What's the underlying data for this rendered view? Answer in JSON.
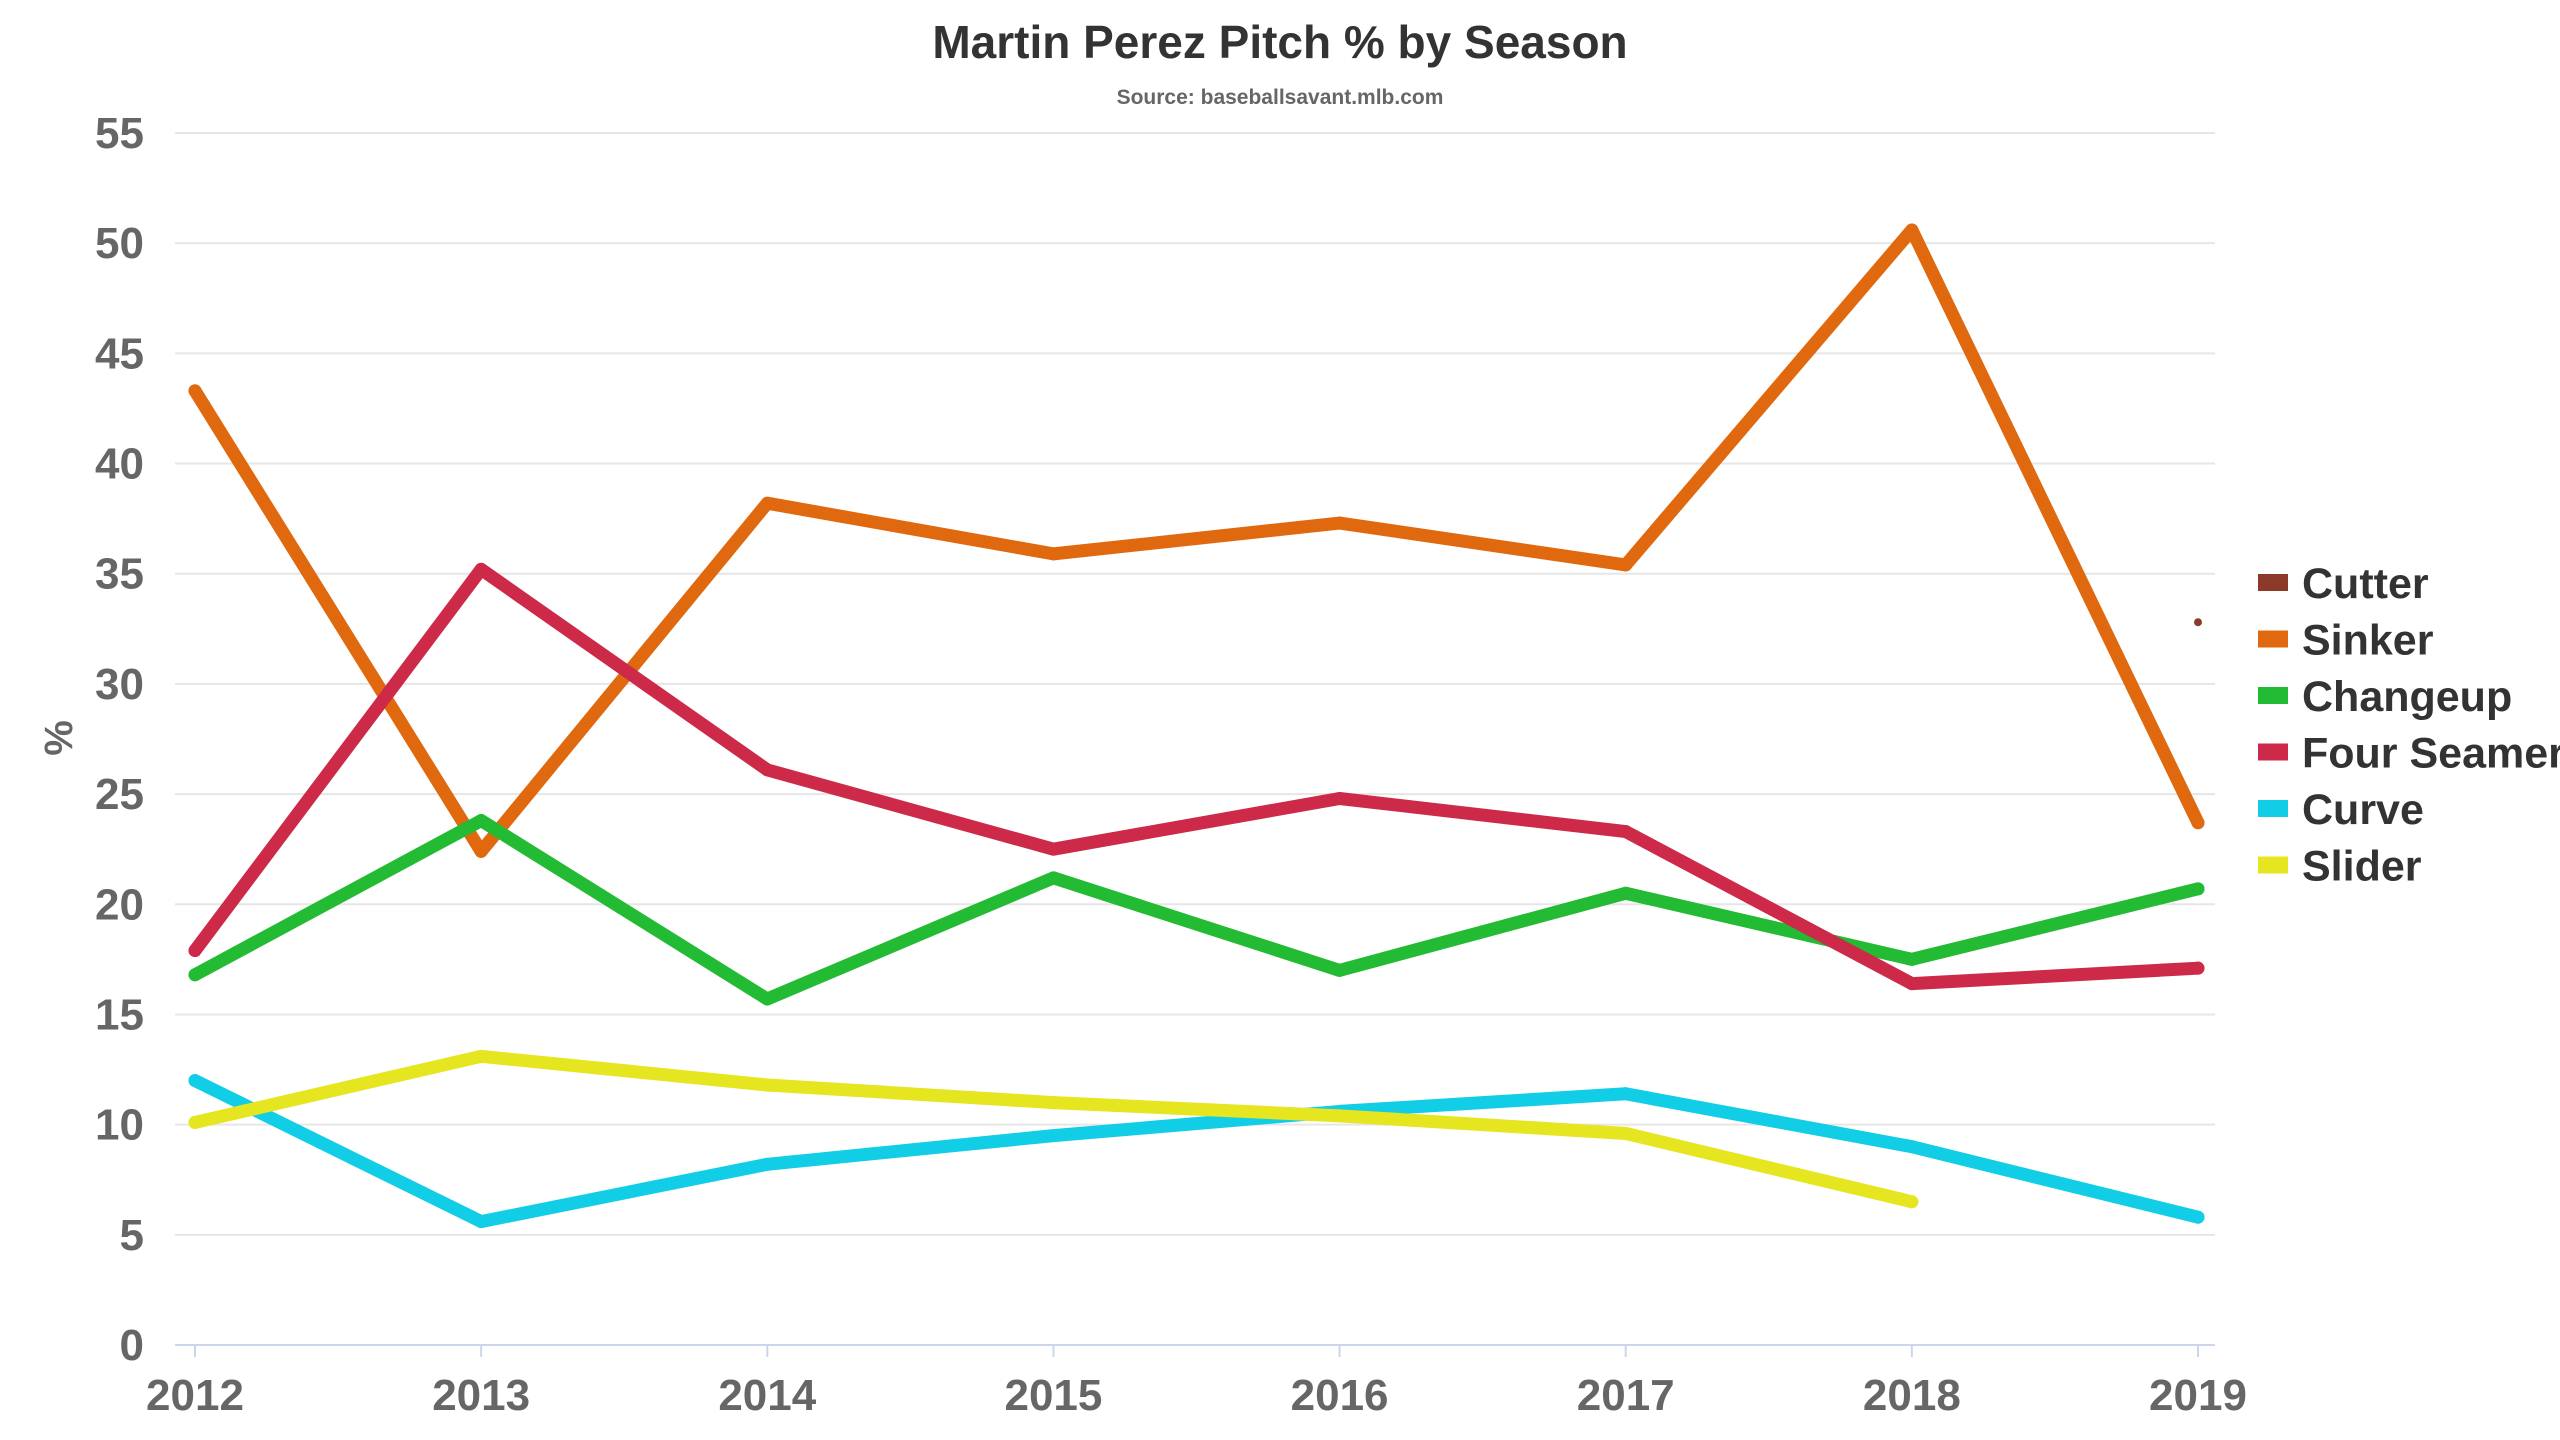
{
  "chart_data": {
    "type": "line",
    "title": "Martin Perez Pitch % by Season",
    "subtitle": "Source: baseballsavant.mlb.com",
    "ylabel": "%",
    "xlabel": "",
    "categories": [
      "2012",
      "2013",
      "2014",
      "2015",
      "2016",
      "2017",
      "2018",
      "2019"
    ],
    "ylim": [
      0,
      55
    ],
    "yticks": [
      0,
      5,
      10,
      15,
      20,
      25,
      30,
      35,
      40,
      45,
      50,
      55
    ],
    "grid": true,
    "legend_position": "right",
    "series": [
      {
        "name": "Cutter",
        "color": "#8b3a2a",
        "values": [
          null,
          null,
          null,
          null,
          null,
          null,
          null,
          32.8
        ]
      },
      {
        "name": "Sinker",
        "color": "#e0690f",
        "values": [
          43.3,
          22.4,
          38.2,
          35.9,
          37.3,
          35.4,
          50.6,
          23.7
        ]
      },
      {
        "name": "Changeup",
        "color": "#22bb33",
        "values": [
          16.8,
          23.8,
          15.7,
          21.2,
          17.0,
          20.5,
          17.5,
          20.7
        ]
      },
      {
        "name": "Four Seamer",
        "color": "#cc2a48",
        "values": [
          17.9,
          35.2,
          26.1,
          22.5,
          24.8,
          23.3,
          16.4,
          17.1
        ]
      },
      {
        "name": "Curve",
        "color": "#12cde6",
        "values": [
          12.0,
          5.6,
          8.2,
          9.5,
          10.6,
          11.4,
          9.0,
          5.8
        ]
      },
      {
        "name": "Slider",
        "color": "#e5e520",
        "values": [
          10.1,
          13.1,
          11.8,
          11.0,
          10.4,
          9.6,
          6.5,
          null
        ]
      }
    ]
  }
}
